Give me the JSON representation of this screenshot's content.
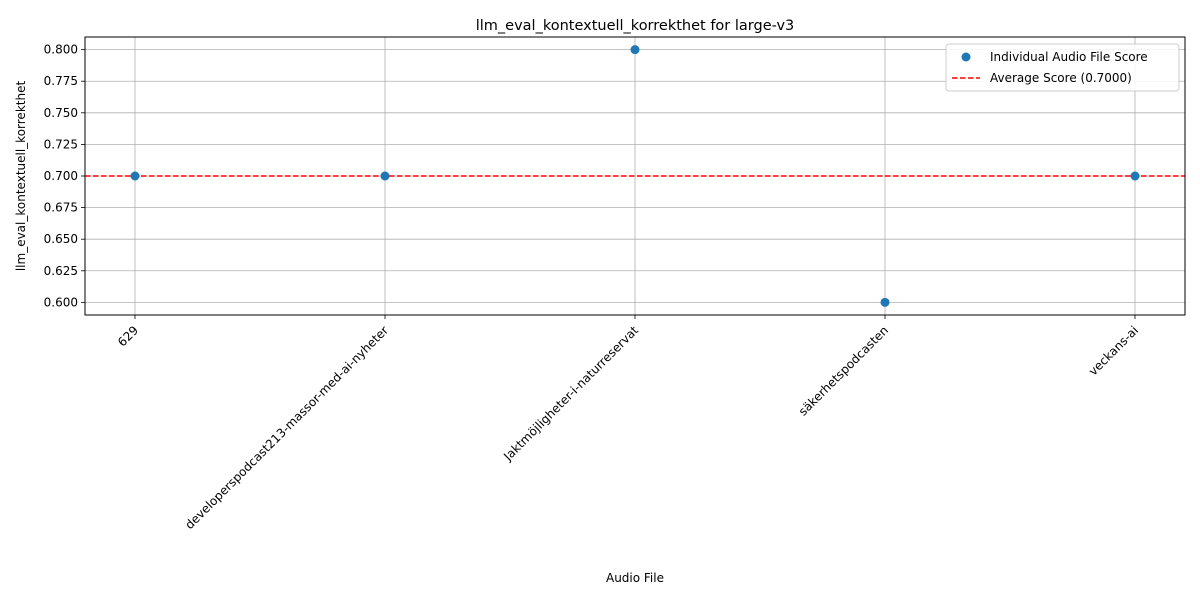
{
  "chart_data": {
    "type": "scatter",
    "title": "llm_eval_kontextuell_korrekthet for large-v3",
    "xlabel": "Audio File",
    "ylabel": "llm_eval_kontextuell_korrekthet",
    "categories": [
      "629",
      "developerspodcast213-massor-med-ai-nyheter",
      "Jaktmöjligheter-i-naturreservat",
      "säkerhetspodcasten",
      "veckans-ai"
    ],
    "values": [
      0.7,
      0.7,
      0.8,
      0.6,
      0.7
    ],
    "average": 0.7,
    "ylim": [
      0.59,
      0.81
    ],
    "yticks": [
      0.6,
      0.625,
      0.65,
      0.675,
      0.7,
      0.725,
      0.75,
      0.775,
      0.8
    ],
    "ytick_labels": [
      "0.600",
      "0.625",
      "0.650",
      "0.675",
      "0.700",
      "0.725",
      "0.750",
      "0.775",
      "0.800"
    ],
    "grid": true,
    "legend": {
      "placement": "top-right",
      "entries": [
        {
          "label": "Individual Audio File Score",
          "kind": "marker"
        },
        {
          "label": "Average Score (0.7000)",
          "kind": "dashed-line"
        }
      ]
    },
    "colors": {
      "points": "#1f77b4",
      "average_line": "#ff0000",
      "grid": "#b0b0b0"
    }
  }
}
